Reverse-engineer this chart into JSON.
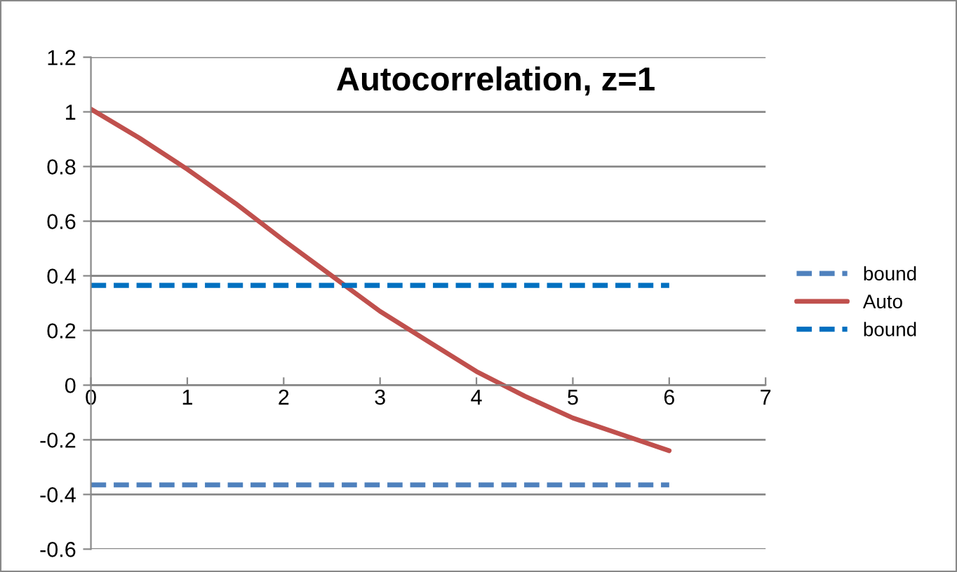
{
  "chart_data": {
    "type": "line",
    "title": "Autocorrelation, z=1",
    "x": [
      0,
      0.5,
      1,
      1.5,
      2,
      2.5,
      3,
      3.5,
      4,
      4.5,
      5,
      5.5,
      6
    ],
    "series": [
      {
        "name": "bound",
        "color": "#4f81bd",
        "line_style": "dashed",
        "values": [
          -0.365,
          -0.365,
          -0.365,
          -0.365,
          -0.365,
          -0.365,
          -0.365,
          -0.365,
          -0.365,
          -0.365,
          -0.365,
          -0.365,
          -0.365
        ]
      },
      {
        "name": "Auto",
        "color": "#c0504d",
        "line_style": "solid",
        "values": [
          1.01,
          0.905,
          0.79,
          0.665,
          0.53,
          0.4,
          0.27,
          0.16,
          0.05,
          -0.04,
          -0.12,
          -0.18,
          -0.24
        ]
      },
      {
        "name": "bound",
        "color": "#0070c0",
        "line_style": "dashed",
        "values": [
          0.365,
          0.365,
          0.365,
          0.365,
          0.365,
          0.365,
          0.365,
          0.365,
          0.365,
          0.365,
          0.365,
          0.365,
          0.365
        ]
      }
    ],
    "xlim": [
      0,
      7
    ],
    "xticks": [
      0,
      1,
      2,
      3,
      4,
      5,
      6,
      7
    ],
    "ylim": [
      -0.6,
      1.2
    ],
    "yticks": [
      -0.6,
      -0.4,
      -0.2,
      0,
      0.2,
      0.4,
      0.6,
      0.8,
      1,
      1.2
    ],
    "grid": "y",
    "legend": "right",
    "marker": "none"
  }
}
